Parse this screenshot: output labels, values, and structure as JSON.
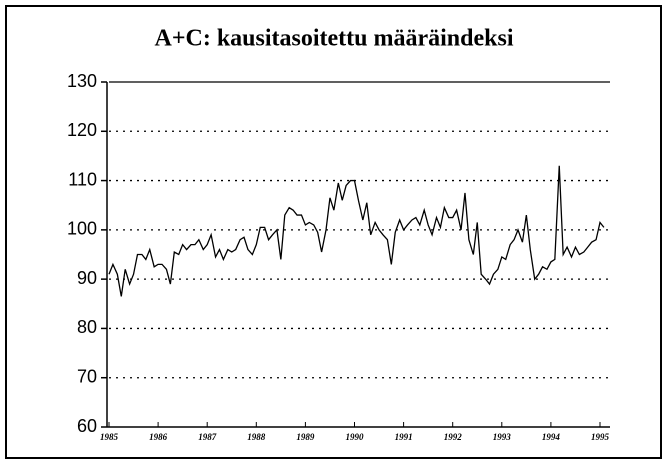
{
  "chart_data": {
    "type": "line",
    "title": "A+C: kausitasoitettu määräindeksi",
    "x": [
      1985,
      1985.08,
      1985.17,
      1985.25,
      1985.33,
      1985.42,
      1985.5,
      1985.58,
      1985.67,
      1985.75,
      1985.83,
      1985.92,
      1986,
      1986.08,
      1986.17,
      1986.25,
      1986.33,
      1986.42,
      1986.5,
      1986.58,
      1986.67,
      1986.75,
      1986.83,
      1986.92,
      1987,
      1987.08,
      1987.17,
      1987.25,
      1987.33,
      1987.42,
      1987.5,
      1987.58,
      1987.67,
      1987.75,
      1987.83,
      1987.92,
      1988,
      1988.08,
      1988.17,
      1988.25,
      1988.33,
      1988.42,
      1988.5,
      1988.58,
      1988.67,
      1988.75,
      1988.83,
      1988.92,
      1989,
      1989.08,
      1989.17,
      1989.25,
      1989.33,
      1989.42,
      1989.5,
      1989.58,
      1989.67,
      1989.75,
      1989.83,
      1989.92,
      1990,
      1990.08,
      1990.17,
      1990.25,
      1990.33,
      1990.42,
      1990.5,
      1990.58,
      1990.67,
      1990.75,
      1990.83,
      1990.92,
      1991,
      1991.08,
      1991.17,
      1991.25,
      1991.33,
      1991.42,
      1991.5,
      1991.58,
      1991.67,
      1991.75,
      1991.83,
      1991.92,
      1992,
      1992.08,
      1992.17,
      1992.25,
      1992.33,
      1992.42,
      1992.5,
      1992.58,
      1992.67,
      1992.75,
      1992.83,
      1992.92,
      1993,
      1993.08,
      1993.17,
      1993.25,
      1993.33,
      1993.42,
      1993.5,
      1993.58,
      1993.67,
      1993.75,
      1993.83,
      1993.92,
      1994,
      1994.08,
      1994.17,
      1994.25,
      1994.33,
      1994.42,
      1994.5,
      1994.58,
      1994.67,
      1994.75,
      1994.83,
      1994.92,
      1995,
      1995.08
    ],
    "series": [
      {
        "color": "#000000",
        "values": [
          91,
          93,
          91,
          86.5,
          92,
          89,
          91,
          95,
          95,
          94,
          96,
          92.5,
          93,
          93,
          92,
          89,
          95.5,
          95,
          97,
          96,
          97,
          97,
          98,
          96,
          97,
          99,
          94.5,
          96,
          94,
          96,
          95.5,
          96,
          98,
          98.5,
          96,
          95,
          97,
          100.5,
          100.5,
          98,
          99,
          100,
          94,
          103,
          104.5,
          104,
          103,
          103,
          101,
          101.5,
          101,
          99.5,
          95.5,
          100,
          106.5,
          104,
          109.5,
          106,
          109,
          110,
          110,
          106,
          102,
          105.5,
          99,
          101.5,
          100,
          99,
          98,
          93,
          99.5,
          102,
          100,
          101,
          102,
          102.5,
          101,
          104,
          101,
          99,
          102.5,
          100.5,
          104.5,
          102.5,
          102.5,
          104,
          100,
          107.5,
          98,
          95,
          101.5,
          91,
          90,
          89,
          91,
          92,
          94.5,
          94,
          97,
          98,
          100,
          97.5,
          103,
          96,
          90,
          91,
          92.5,
          92,
          93.5,
          94,
          113,
          95,
          96.5,
          94.5,
          96.5,
          95,
          95.5,
          96.5,
          97.5,
          98,
          101.5,
          100.5
        ]
      }
    ],
    "xlim": [
      1985,
      1995.2
    ],
    "xticks": [
      1985,
      1986,
      1987,
      1988,
      1989,
      1990,
      1991,
      1992,
      1993,
      1994,
      1995
    ],
    "ylim": [
      60,
      130
    ],
    "yticks": [
      60,
      70,
      80,
      90,
      100,
      110,
      120,
      130
    ],
    "grid": true
  }
}
